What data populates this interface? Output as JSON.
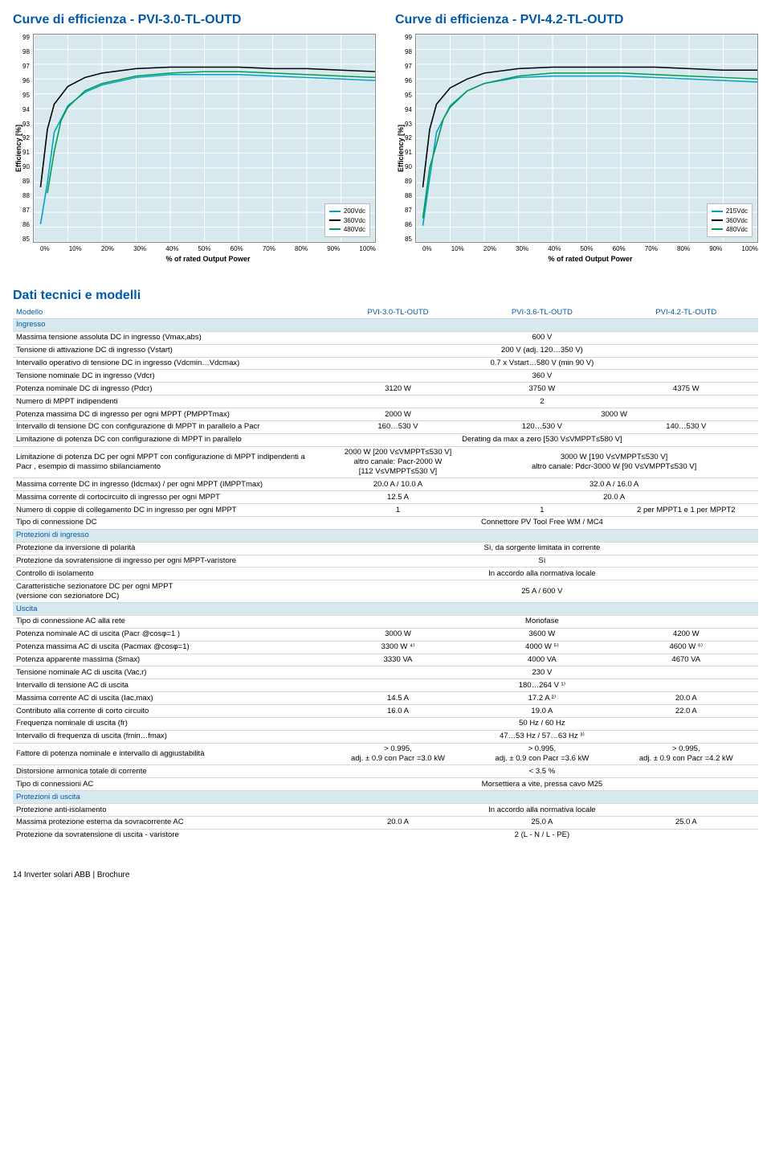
{
  "title_left": "Curve di efficienza - PVI-3.0-TL-OUTD",
  "title_right": "Curve di efficienza - PVI-4.2-TL-OUTD",
  "chart_style": {
    "bg": "#d7e8ef",
    "grid": "#ffffff",
    "border": "#888888",
    "tick_font": 8,
    "label_font": 9
  },
  "chart_left": {
    "type": "line",
    "ylabel": "Efficiency [%]",
    "xlabel": "% of rated Output Power",
    "xlim": [
      0,
      100
    ],
    "ylim": [
      85,
      99
    ],
    "xticks": [
      "0%",
      "10%",
      "20%",
      "30%",
      "40%",
      "50%",
      "60%",
      "70%",
      "80%",
      "90%",
      "100%"
    ],
    "yticks": [
      "99",
      "98",
      "97",
      "96",
      "95",
      "94",
      "93",
      "92",
      "91",
      "90",
      "89",
      "88",
      "87",
      "86",
      "85"
    ],
    "legend": [
      {
        "label": "200Vdc",
        "color": "#00a1c9"
      },
      {
        "label": "360Vdc",
        "color": "#000000"
      },
      {
        "label": "480Vdc",
        "color": "#009e49"
      }
    ],
    "series": [
      {
        "color": "#00a1c9",
        "points": [
          [
            2,
            86.2
          ],
          [
            4,
            89.0
          ],
          [
            6,
            92.4
          ],
          [
            10,
            94.2
          ],
          [
            15,
            95.1
          ],
          [
            20,
            95.6
          ],
          [
            30,
            96.1
          ],
          [
            40,
            96.3
          ],
          [
            50,
            96.3
          ],
          [
            60,
            96.3
          ],
          [
            70,
            96.2
          ],
          [
            80,
            96.1
          ],
          [
            90,
            96.0
          ],
          [
            100,
            95.9
          ]
        ]
      },
      {
        "color": "#000000",
        "points": [
          [
            2,
            88.7
          ],
          [
            4,
            92.6
          ],
          [
            6,
            94.3
          ],
          [
            10,
            95.5
          ],
          [
            15,
            96.1
          ],
          [
            20,
            96.4
          ],
          [
            30,
            96.7
          ],
          [
            40,
            96.8
          ],
          [
            50,
            96.8
          ],
          [
            60,
            96.8
          ],
          [
            70,
            96.7
          ],
          [
            80,
            96.7
          ],
          [
            90,
            96.6
          ],
          [
            100,
            96.5
          ]
        ]
      },
      {
        "color": "#009e49",
        "points": [
          [
            4,
            88.3
          ],
          [
            6,
            91.1
          ],
          [
            8,
            93.2
          ],
          [
            10,
            94.1
          ],
          [
            15,
            95.2
          ],
          [
            20,
            95.7
          ],
          [
            30,
            96.2
          ],
          [
            40,
            96.4
          ],
          [
            50,
            96.5
          ],
          [
            60,
            96.5
          ],
          [
            70,
            96.4
          ],
          [
            80,
            96.3
          ],
          [
            90,
            96.2
          ],
          [
            100,
            96.1
          ]
        ]
      }
    ]
  },
  "chart_right": {
    "type": "line",
    "ylabel": "Efficiency [%]",
    "xlabel": "% of rated Output Power",
    "xlim": [
      0,
      100
    ],
    "ylim": [
      85,
      99
    ],
    "xticks": [
      "0%",
      "10%",
      "20%",
      "30%",
      "40%",
      "50%",
      "60%",
      "70%",
      "80%",
      "90%",
      "100%"
    ],
    "yticks": [
      "99",
      "98",
      "97",
      "96",
      "95",
      "94",
      "93",
      "92",
      "91",
      "90",
      "89",
      "88",
      "87",
      "86",
      "85"
    ],
    "legend": [
      {
        "label": "215Vdc",
        "color": "#00a1c9"
      },
      {
        "label": "360Vdc",
        "color": "#000000"
      },
      {
        "label": "480Vdc",
        "color": "#009e49"
      }
    ],
    "series": [
      {
        "color": "#00a1c9",
        "points": [
          [
            2,
            86.1
          ],
          [
            4,
            89.3
          ],
          [
            6,
            92.4
          ],
          [
            10,
            94.2
          ],
          [
            15,
            95.2
          ],
          [
            20,
            95.7
          ],
          [
            30,
            96.1
          ],
          [
            40,
            96.2
          ],
          [
            50,
            96.2
          ],
          [
            60,
            96.2
          ],
          [
            70,
            96.1
          ],
          [
            80,
            96.0
          ],
          [
            90,
            95.9
          ],
          [
            100,
            95.8
          ]
        ]
      },
      {
        "color": "#000000",
        "points": [
          [
            2,
            88.7
          ],
          [
            4,
            92.6
          ],
          [
            6,
            94.3
          ],
          [
            10,
            95.4
          ],
          [
            15,
            96.0
          ],
          [
            20,
            96.4
          ],
          [
            30,
            96.7
          ],
          [
            40,
            96.8
          ],
          [
            50,
            96.8
          ],
          [
            60,
            96.8
          ],
          [
            70,
            96.8
          ],
          [
            80,
            96.7
          ],
          [
            90,
            96.6
          ],
          [
            100,
            96.6
          ]
        ]
      },
      {
        "color": "#009e49",
        "points": [
          [
            2,
            86.6
          ],
          [
            4,
            90.0
          ],
          [
            6,
            91.6
          ],
          [
            8,
            93.3
          ],
          [
            10,
            94.1
          ],
          [
            15,
            95.2
          ],
          [
            20,
            95.7
          ],
          [
            30,
            96.2
          ],
          [
            40,
            96.4
          ],
          [
            50,
            96.4
          ],
          [
            60,
            96.4
          ],
          [
            70,
            96.3
          ],
          [
            80,
            96.2
          ],
          [
            90,
            96.1
          ],
          [
            100,
            96.0
          ]
        ]
      }
    ]
  },
  "table_title": "Dati tecnici e modelli",
  "models": [
    "PVI-3.0-TL-OUTD",
    "PVI-3.6-TL-OUTD",
    "PVI-4.2-TL-OUTD"
  ],
  "model_label": "Modello",
  "rows": [
    {
      "section": "Ingresso"
    },
    {
      "label": "Massima tensione assoluta DC in ingresso (Vmax,abs)",
      "vals": [
        "",
        "600 V",
        ""
      ],
      "span": 3
    },
    {
      "label": "Tensione di attivazione DC di ingresso (Vstart)",
      "vals": [
        "",
        "200 V (adj. 120…350 V)",
        ""
      ],
      "span": 3
    },
    {
      "label": "Intervallo operativo di tensione DC in ingresso (Vdcmin…Vdcmax)",
      "vals": [
        "",
        "0.7 x Vstart…580 V (min 90 V)",
        ""
      ],
      "span": 3
    },
    {
      "label": "Tensione nominale DC in ingresso (Vdcr)",
      "vals": [
        "",
        "360 V",
        ""
      ],
      "span": 3
    },
    {
      "label": "Potenza nominale DC di ingresso (Pdcr)",
      "vals": [
        "3120 W",
        "3750 W",
        "4375 W"
      ]
    },
    {
      "label": "Numero di MPPT indipendenti",
      "vals": [
        "",
        "2",
        ""
      ],
      "span": 3
    },
    {
      "label": "Potenza massima DC di ingresso per ogni MPPT (PMPPTmax)",
      "vals": [
        "2000 W",
        "3000 W",
        ""
      ],
      "span12": true
    },
    {
      "label": "Intervallo di tensione DC con configurazione di MPPT in parallelo a Pacr",
      "vals": [
        "160…530 V",
        "120…530 V",
        "140…530 V"
      ]
    },
    {
      "label": "Limitazione di potenza DC con configurazione di MPPT in parallelo",
      "vals": [
        "",
        "Derating da max a zero [530 V≤VMPPT≤580 V]",
        ""
      ],
      "span": 3
    },
    {
      "label": "Limitazione di potenza DC per ogni MPPT con configurazione di MPPT indipendenti a Pacr , esempio di massimo sbilanciamento",
      "vals": [
        "2000 W [200 V≤VMPPT≤530 V]\naltro canale: Pacr-2000 W\n[112 V≤VMPPT≤530 V]",
        "3000 W [190 V≤VMPPT≤530 V]\naltro canale: Pdcr-3000 W [90 V≤VMPPT≤530 V]",
        ""
      ],
      "span12": true
    },
    {
      "label": "Massima corrente DC in ingresso (Idcmax) / per ogni MPPT (IMPPTmax)",
      "vals": [
        "20.0 A / 10.0 A",
        "32.0 A / 16.0 A",
        ""
      ],
      "span12": true
    },
    {
      "label": "Massima corrente di cortocircuito di ingresso per ogni MPPT",
      "vals": [
        "12.5 A",
        "20.0 A",
        ""
      ],
      "span12": true
    },
    {
      "label": "Numero di coppie di collegamento DC in ingresso per ogni MPPT",
      "vals": [
        "1",
        "1",
        "2 per MPPT1 e 1 per MPPT2"
      ]
    },
    {
      "label": "Tipo di connessione DC",
      "vals": [
        "",
        "Connettore PV Tool Free WM / MC4",
        ""
      ],
      "span": 3
    },
    {
      "section": "Protezioni di ingresso"
    },
    {
      "label": "Protezione da inversione di polarità",
      "vals": [
        "",
        "Sì, da sorgente limitata in corrente",
        ""
      ],
      "span": 3
    },
    {
      "label": "Protezione da sovratensione di ingresso per ogni MPPT-varistore",
      "vals": [
        "",
        "Sì",
        ""
      ],
      "span": 3
    },
    {
      "label": "Controllo di isolamento",
      "vals": [
        "",
        "In accordo alla normativa locale",
        ""
      ],
      "span": 3
    },
    {
      "label": "Caratteristiche sezionatore DC per ogni MPPT\n(versione con sezionatore DC)",
      "vals": [
        "",
        "25 A / 600 V",
        ""
      ],
      "span": 3
    },
    {
      "section": "Uscita"
    },
    {
      "label": "Tipo di connessione AC alla rete",
      "vals": [
        "",
        "Monofase",
        ""
      ],
      "span": 3
    },
    {
      "label": "Potenza nominale AC di uscita (Pacr @cosφ=1 )",
      "vals": [
        "3000 W",
        "3600 W",
        "4200 W"
      ]
    },
    {
      "label": "Potenza massima AC di uscita (Pacmax @cosφ=1)",
      "vals": [
        "3300 W ⁴⁾",
        "4000 W ⁵⁾",
        "4600 W ⁶⁾"
      ]
    },
    {
      "label": "Potenza apparente massima (Smax)",
      "vals": [
        "3330 VA",
        "4000 VA",
        "4670 VA"
      ]
    },
    {
      "label": "Tensione nominale AC di uscita (Vac,r)",
      "vals": [
        "",
        "230 V",
        ""
      ],
      "span": 3
    },
    {
      "label": "Intervallo di tensione AC di uscita",
      "vals": [
        "",
        "180…264 V ¹⁾",
        ""
      ],
      "span": 3
    },
    {
      "label": "Massima corrente AC di uscita (Iac,max)",
      "vals": [
        "14.5 A",
        "17.2 A ²⁾",
        "20.0 A"
      ]
    },
    {
      "label": "Contributo alla corrente di corto circuito",
      "vals": [
        "16.0 A",
        "19.0 A",
        "22.0 A"
      ]
    },
    {
      "label": "Frequenza nominale di uscita (fr)",
      "vals": [
        "",
        "50 Hz / 60 Hz",
        ""
      ],
      "span": 3
    },
    {
      "label": "Intervallo di frequenza di uscita (fmin…fmax)",
      "vals": [
        "",
        "47…53 Hz / 57…63 Hz ³⁾",
        ""
      ],
      "span": 3
    },
    {
      "label": "Fattore di potenza nominale e intervallo di aggiustabilità",
      "vals": [
        "> 0.995,\nadj. ± 0.9 con Pacr =3.0 kW",
        "> 0.995,\nadj. ± 0.9 con Pacr =3.6 kW",
        "> 0.995,\nadj. ± 0.9 con Pacr =4.2 kW"
      ]
    },
    {
      "label": "Distorsione armonica totale di corrente",
      "vals": [
        "",
        "< 3.5 %",
        ""
      ],
      "span": 3
    },
    {
      "label": "Tipo di connessioni AC",
      "vals": [
        "",
        "Morsettiera a vite, pressa cavo M25",
        ""
      ],
      "span": 3
    },
    {
      "section": "Protezioni di uscita"
    },
    {
      "label": "Protezione anti-isolamento",
      "vals": [
        "",
        "In accordo alla normativa locale",
        ""
      ],
      "span": 3
    },
    {
      "label": "Massima protezione esterna da sovracorrente AC",
      "vals": [
        "20.0 A",
        "25.0 A",
        "25.0 A"
      ]
    },
    {
      "label": "Protezione da sovratensione di uscita - varistore",
      "vals": [
        "",
        "2 (L - N / L - PE)",
        ""
      ],
      "span": 3
    }
  ],
  "footer": "14 Inverter solari ABB | Brochure"
}
